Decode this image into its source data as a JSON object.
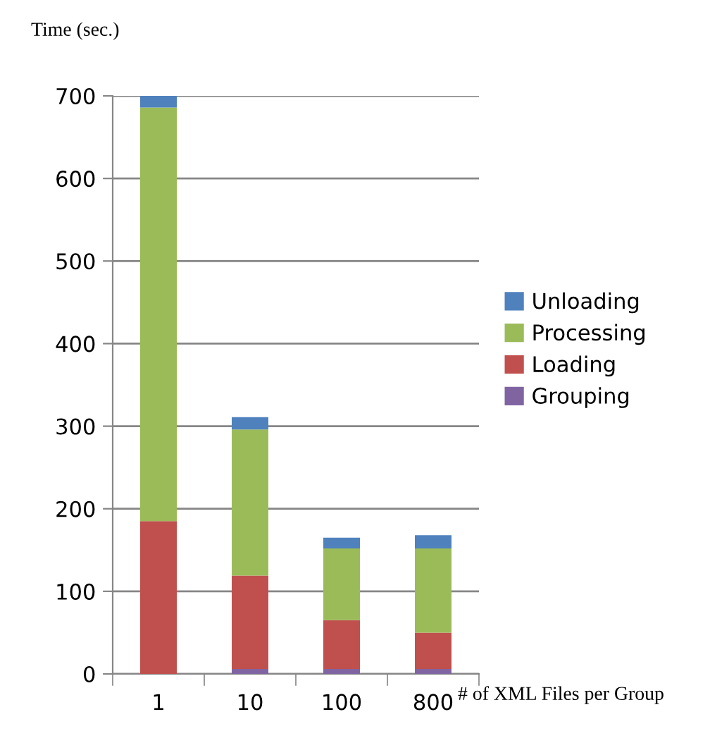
{
  "chart_data": {
    "type": "bar",
    "stacked": true,
    "ylabel": "Time (sec.)",
    "xlabel": "# of XML Files per Group",
    "categories": [
      "1",
      "10",
      "100",
      "800"
    ],
    "series": [
      {
        "name": "Grouping",
        "color": "#8064a2",
        "values": [
          0,
          6,
          6,
          6
        ]
      },
      {
        "name": "Loading",
        "color": "#c0504d",
        "values": [
          185,
          113,
          59,
          44
        ]
      },
      {
        "name": "Processing",
        "color": "#9bbb59",
        "values": [
          501,
          177,
          87,
          102
        ]
      },
      {
        "name": "Unloading",
        "color": "#4f81bd",
        "values": [
          14,
          15,
          13,
          16
        ]
      }
    ],
    "ylim": [
      0,
      700
    ],
    "yticks": [
      0,
      100,
      200,
      300,
      400,
      500,
      600,
      700
    ],
    "grid": "y",
    "legend": "right"
  }
}
